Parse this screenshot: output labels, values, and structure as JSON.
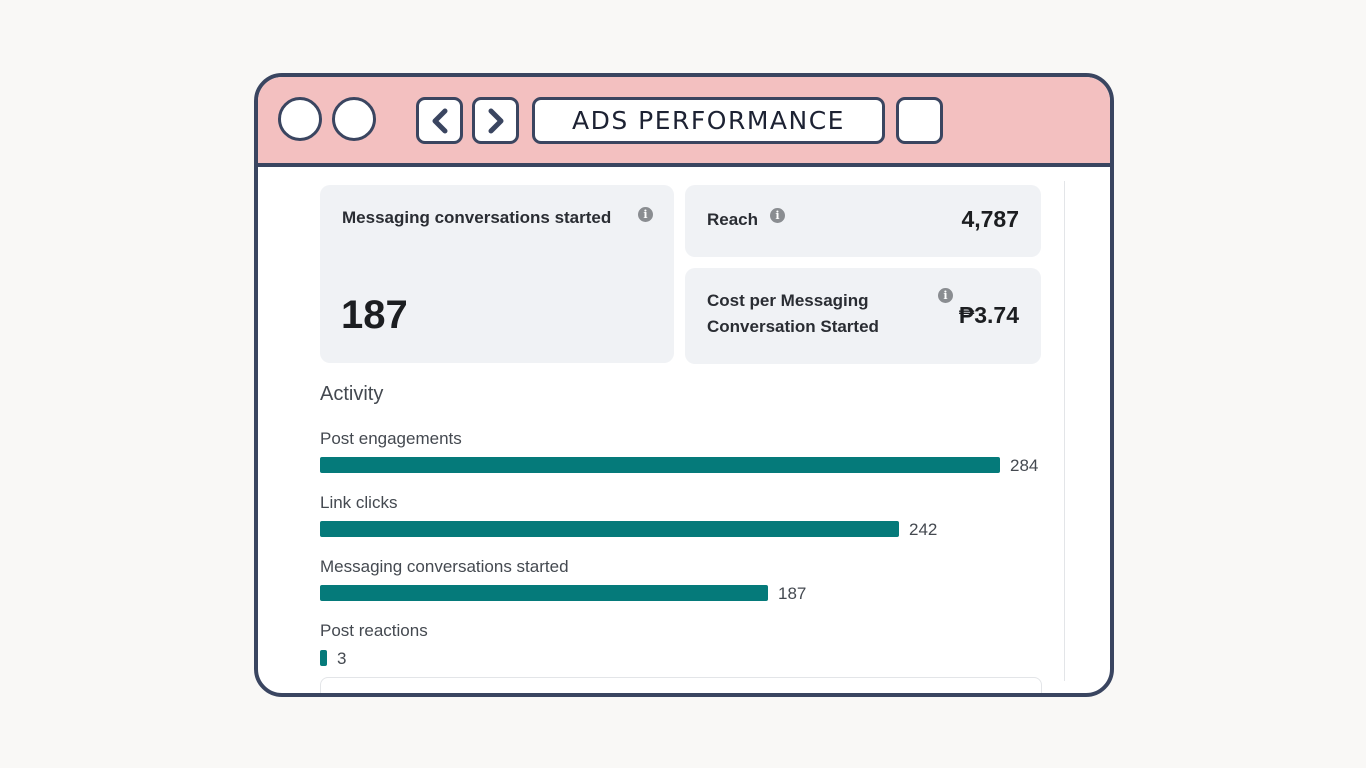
{
  "window": {
    "title": "ADS PERFORMANCE"
  },
  "cards": {
    "messaging": {
      "label": "Messaging conversations started",
      "value": "187"
    },
    "reach": {
      "label": "Reach",
      "value": "4,787"
    },
    "cost": {
      "label_line1": "Cost per Messaging",
      "label_line2": "Conversation Started",
      "value": "₱3.74"
    }
  },
  "activity": {
    "title": "Activity",
    "rows": [
      {
        "label": "Post engagements",
        "value": 284,
        "value_text": "284"
      },
      {
        "label": "Link clicks",
        "value": 242,
        "value_text": "242"
      },
      {
        "label": "Messaging conversations started",
        "value": 187,
        "value_text": "187"
      },
      {
        "label": "Post reactions",
        "value": 3,
        "value_text": "3"
      }
    ]
  },
  "icons": {
    "info": "i"
  },
  "colors": {
    "titlebar": "#f3c0c0",
    "frame": "#3a4560",
    "bar": "#057a7a",
    "card": "#f0f2f5"
  }
}
